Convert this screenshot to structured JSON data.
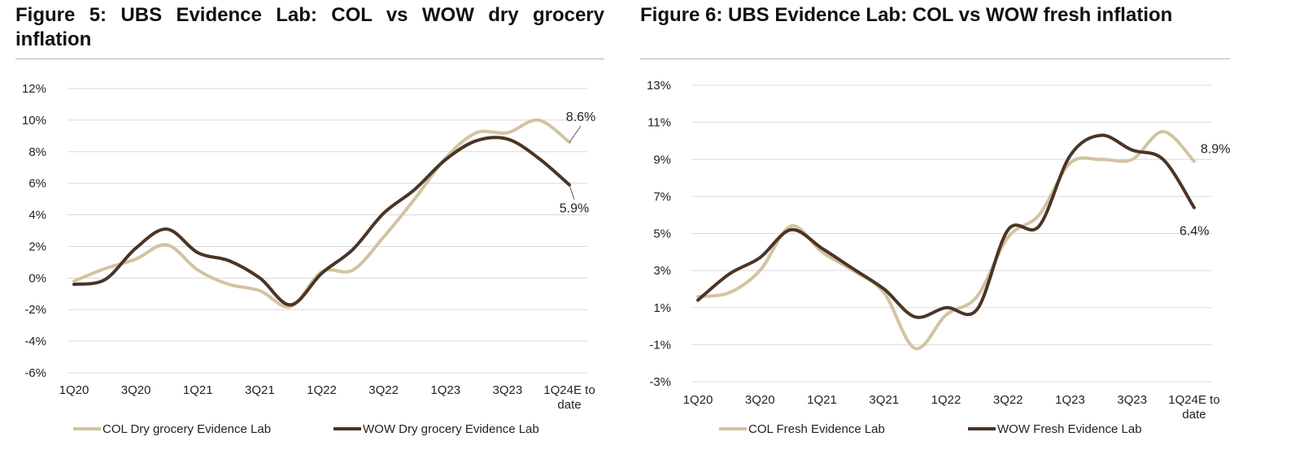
{
  "colors": {
    "col": "#d2c3a2",
    "wow": "#4a3526"
  },
  "figures": [
    {
      "title": "Figure 5: UBS Evidence Lab: COL vs WOW dry grocery inflation"
    },
    {
      "title": "Figure 6: UBS Evidence Lab: COL vs WOW fresh inflation"
    }
  ],
  "chart_data": [
    {
      "type": "line",
      "title": "Figure 5: UBS Evidence Lab: COL vs WOW dry grocery inflation",
      "xlabel": "",
      "ylabel": "",
      "ylim": [
        -6,
        12
      ],
      "y_ticks": [
        -6,
        -4,
        -2,
        0,
        2,
        4,
        6,
        8,
        10,
        12
      ],
      "y_tick_labels": [
        "-6%",
        "-4%",
        "-2%",
        "0%",
        "2%",
        "4%",
        "6%",
        "8%",
        "10%",
        "12%"
      ],
      "x_ticks": [
        "1Q20",
        "3Q20",
        "1Q21",
        "3Q21",
        "1Q22",
        "3Q22",
        "1Q23",
        "3Q23",
        "1Q24E to date"
      ],
      "x_tick_index": [
        0,
        2,
        4,
        6,
        8,
        10,
        12,
        14,
        16
      ],
      "x_tick_lines": [
        [
          "1Q20"
        ],
        [
          "3Q20"
        ],
        [
          "1Q21"
        ],
        [
          "3Q21"
        ],
        [
          "1Q22"
        ],
        [
          "3Q22"
        ],
        [
          "1Q23"
        ],
        [
          "3Q23"
        ],
        [
          "1Q24E to",
          "date"
        ]
      ],
      "series": [
        {
          "name": "COL Dry grocery Evidence Lab",
          "color_key": "col",
          "x": [
            0,
            1,
            2,
            3,
            4,
            5,
            6,
            7,
            8,
            9,
            10,
            11,
            12,
            13,
            14,
            15,
            16
          ],
          "values": [
            -0.2,
            0.6,
            1.2,
            2.1,
            0.5,
            -0.4,
            -0.8,
            -1.8,
            0.4,
            0.5,
            2.6,
            5.0,
            7.6,
            9.2,
            9.2,
            10.0,
            8.6
          ]
        },
        {
          "name": "WOW Dry grocery Evidence Lab",
          "color_key": "wow",
          "x": [
            0,
            1,
            2,
            3,
            4,
            5,
            6,
            7,
            8,
            9,
            10,
            11,
            12,
            13,
            14,
            15,
            16
          ],
          "values": [
            -0.4,
            -0.1,
            1.9,
            3.1,
            1.6,
            1.1,
            0.0,
            -1.7,
            0.3,
            1.8,
            4.1,
            5.6,
            7.5,
            8.7,
            8.8,
            7.6,
            5.9
          ]
        }
      ],
      "annotations": [
        {
          "series": 0,
          "text": "8.6%",
          "position": "above"
        },
        {
          "series": 1,
          "text": "5.9%",
          "position": "below"
        }
      ],
      "legend": "bottom"
    },
    {
      "type": "line",
      "title": "Figure 6: UBS Evidence Lab: COL vs WOW fresh inflation",
      "xlabel": "",
      "ylabel": "",
      "ylim": [
        -3,
        13
      ],
      "y_ticks": [
        -3,
        -1,
        1,
        3,
        5,
        7,
        9,
        11,
        13
      ],
      "y_tick_labels": [
        "-3%",
        "-1%",
        "1%",
        "3%",
        "5%",
        "7%",
        "9%",
        "11%",
        "13%"
      ],
      "x_ticks": [
        "1Q20",
        "3Q20",
        "1Q21",
        "3Q21",
        "1Q22",
        "3Q22",
        "1Q23",
        "3Q23",
        "1Q24E to date"
      ],
      "x_tick_index": [
        0,
        2,
        4,
        6,
        8,
        10,
        12,
        14,
        16
      ],
      "x_tick_lines": [
        [
          "1Q20"
        ],
        [
          "3Q20"
        ],
        [
          "1Q21"
        ],
        [
          "3Q21"
        ],
        [
          "1Q22"
        ],
        [
          "3Q22"
        ],
        [
          "1Q23"
        ],
        [
          "3Q23"
        ],
        [
          "1Q24E to",
          "date"
        ]
      ],
      "series": [
        {
          "name": "COL Fresh Evidence Lab",
          "color_key": "col",
          "x": [
            0,
            1,
            2,
            3,
            4,
            5,
            6,
            7,
            8,
            9,
            10,
            11,
            12,
            13,
            14,
            15,
            16
          ],
          "values": [
            1.6,
            1.8,
            3.0,
            5.4,
            4.0,
            3.0,
            1.8,
            -1.2,
            0.6,
            1.6,
            4.8,
            6.0,
            8.8,
            9.0,
            9.0,
            10.5,
            8.9
          ]
        },
        {
          "name": "WOW Fresh Evidence Lab",
          "color_key": "wow",
          "x": [
            0,
            1,
            2,
            3,
            4,
            5,
            6,
            7,
            8,
            9,
            10,
            11,
            12,
            13,
            14,
            15,
            16
          ],
          "values": [
            1.4,
            2.8,
            3.7,
            5.2,
            4.2,
            3.1,
            2.0,
            0.5,
            1.0,
            0.9,
            5.2,
            5.4,
            9.2,
            10.3,
            9.5,
            9.0,
            6.4
          ]
        }
      ],
      "annotations": [
        {
          "series": 0,
          "text": "8.9%",
          "position": "right"
        },
        {
          "series": 1,
          "text": "6.4%",
          "position": "below"
        }
      ],
      "legend": "bottom"
    }
  ]
}
